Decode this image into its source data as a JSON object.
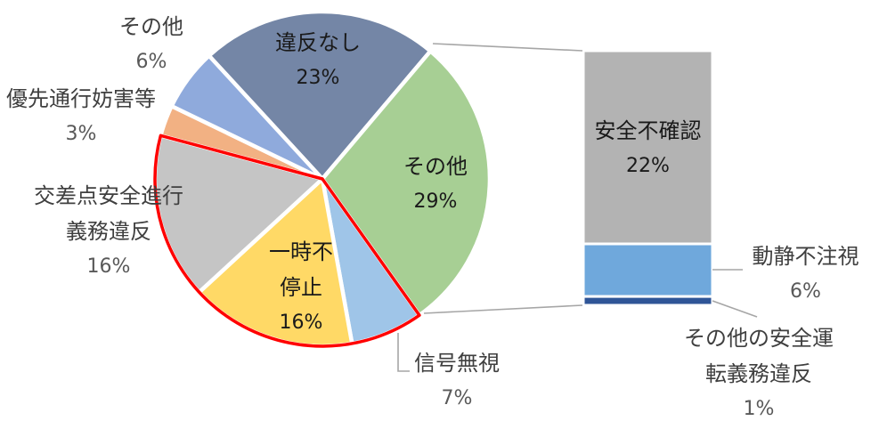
{
  "chart_data": {
    "type": "pie",
    "subtype": "bar-of-pie",
    "title": "",
    "legend": "none",
    "pie": {
      "start_angle_deg": -42.6,
      "slices": [
        {
          "label": "違反なし",
          "pct": 23,
          "color": "#7486A6"
        },
        {
          "label": "その他",
          "pct": 29,
          "color": "#A7CF94"
        },
        {
          "label": "信号無視",
          "pct": 7,
          "color": "#9FC5E8"
        },
        {
          "label": "一時不停止",
          "pct": 16,
          "color": "#FFD966"
        },
        {
          "label": "交差点安全進行義務違反",
          "pct": 16,
          "color": "#C5C5C5"
        },
        {
          "label": "優先通行妨害等",
          "pct": 3,
          "color": "#F2B183"
        },
        {
          "label": "その他",
          "pct": 6,
          "color": "#8FAADC"
        }
      ],
      "highlight_outline": {
        "from_index": 2,
        "to_index": 4,
        "color": "#FF0000"
      }
    },
    "bar": {
      "segments": [
        {
          "label": "安全不確認",
          "pct": 22,
          "color": "#B3B3B3"
        },
        {
          "label": "動静不注視",
          "pct": 6,
          "color": "#6FA8DC"
        },
        {
          "label": "その他の安全運転義務違反",
          "pct": 1,
          "color": "#2F5597"
        }
      ]
    },
    "connector_color": "#A6A6A6"
  },
  "labels": {
    "ihannashi": {
      "name": "違反なし",
      "pct": "23%"
    },
    "sonota_green": {
      "name": "その他",
      "pct": "29%"
    },
    "ichiji": {
      "name1": "一時不",
      "name2": "停止",
      "pct": "16%"
    },
    "shingo": {
      "name": "信号無視",
      "pct": "7%"
    },
    "sonota_blue": {
      "name": "その他",
      "pct": "6%"
    },
    "yusen": {
      "name": "優先通行妨害等",
      "pct": "3%"
    },
    "kousaten": {
      "name1": "交差点安全進行",
      "name2": "義務違反",
      "pct": "16%"
    },
    "anzen": {
      "name": "安全不確認",
      "pct": "22%"
    },
    "dousei": {
      "name": "動静不注視",
      "pct": "6%"
    },
    "sonota_anzen": {
      "name1": "その他の安全運",
      "name2": "転義務違反",
      "pct": "1%"
    }
  }
}
